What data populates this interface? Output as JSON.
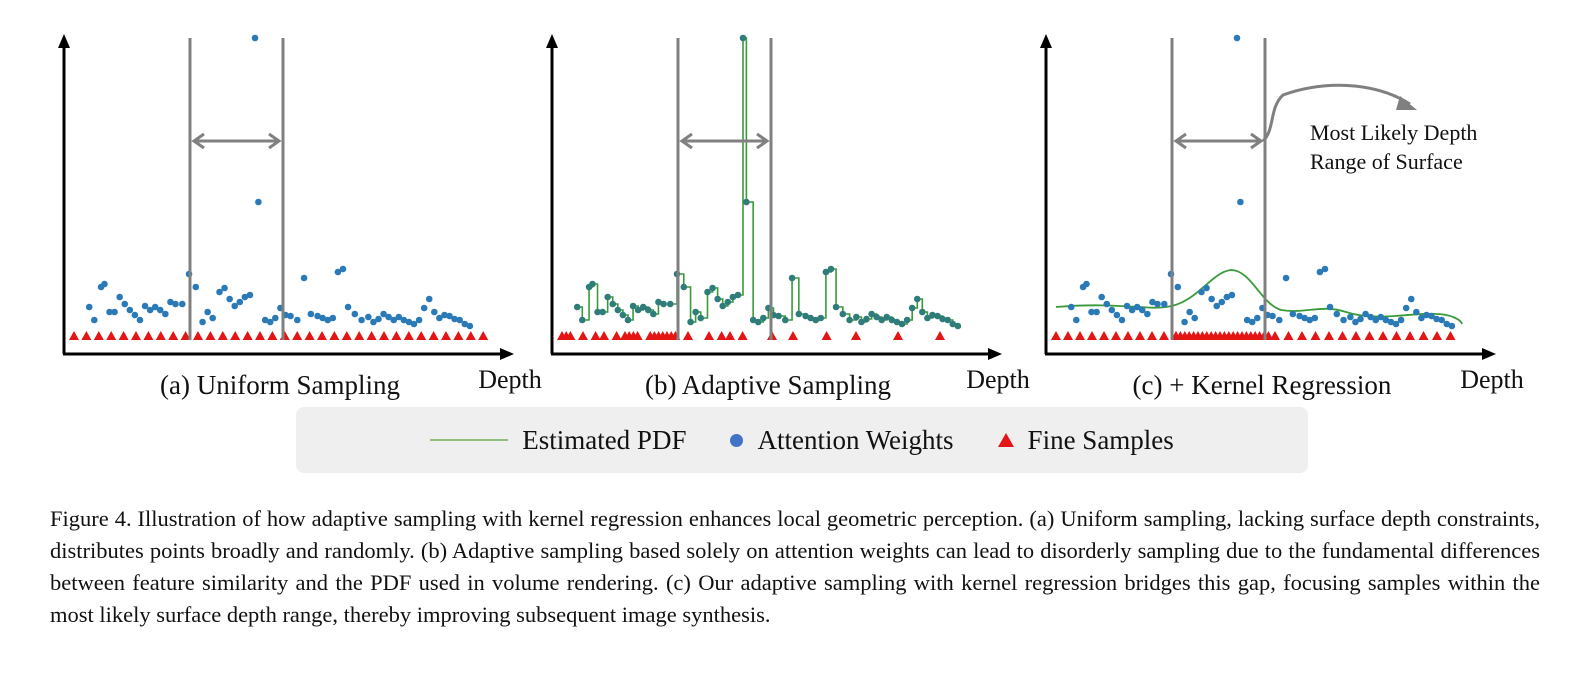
{
  "figure": {
    "panels": [
      {
        "id": "a",
        "caption": "(a) Uniform Sampling",
        "xlabel": "Depth",
        "mode": "uniform"
      },
      {
        "id": "b",
        "caption": "(b) Adaptive Sampling",
        "xlabel": "Depth",
        "mode": "adaptive"
      },
      {
        "id": "c",
        "caption": "(c) + Kernel Regression",
        "xlabel": "Depth",
        "mode": "kernel"
      }
    ],
    "annotation": "Most Likely Depth Range of Surface",
    "annotation_lines": [
      "Most Likely Depth",
      "Range of Surface"
    ],
    "colors": {
      "attention_weights": "#2a7ab8",
      "fine_samples": "#e31515",
      "estimated_pdf": "#3a9a3a",
      "range_lines": "#808080",
      "axis": "#000000"
    }
  },
  "legend": {
    "items": [
      {
        "label": "Estimated PDF",
        "marker": "line"
      },
      {
        "label": "Attention Weights",
        "marker": "dot"
      },
      {
        "label": "Fine Samples",
        "marker": "triangle"
      }
    ]
  },
  "caption": "Figure 4. Illustration of how adaptive sampling with kernel regression enhances local geometric perception. (a) Uniform sampling, lacking surface depth constraints, distributes points broadly and randomly.  (b) Adaptive sampling based solely on attention weights can lead to disorderly sampling due to the fundamental differences between feature similarity and the PDF used in volume rendering.  (c) Our adaptive sampling with kernel regression bridges this gap, focusing samples within the most likely surface depth range, thereby improving subsequent image synthesis."
}
